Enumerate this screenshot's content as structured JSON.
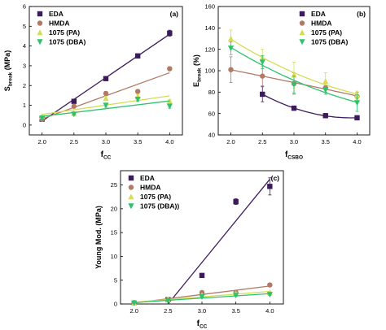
{
  "colors": {
    "EDA": "#3d1a5c",
    "HMDA": "#b07a66",
    "PA": "#d4dd55",
    "DBA": "#2ec26e"
  },
  "chart_data": [
    {
      "panel_label": "(a)",
      "type": "scatter",
      "xlabel_main": "f",
      "xlabel_sub": "CC",
      "ylabel_main": "S",
      "ylabel_sub": "break",
      "ylabel_unit": " (MPa)",
      "xlim": [
        1.8,
        4.2
      ],
      "ylim": [
        -0.5,
        6
      ],
      "xticks": [
        "2.0",
        "2.5",
        "3.0",
        "3.5",
        "4.0"
      ],
      "yticks": [
        "0",
        "1",
        "2",
        "3",
        "4",
        "5",
        "6"
      ],
      "legend_position": "top-left",
      "series": [
        {
          "name": "EDA",
          "color_key": "EDA",
          "marker": "square",
          "x": [
            2.0,
            2.5,
            3.0,
            3.5,
            4.0
          ],
          "y": [
            0.3,
            1.2,
            2.35,
            3.5,
            4.65
          ],
          "err": [
            0.05,
            0.08,
            0.08,
            0.08,
            0.15
          ],
          "fit": "linear"
        },
        {
          "name": "HMDA",
          "color_key": "HMDA",
          "marker": "circle",
          "x": [
            2.0,
            2.5,
            3.0,
            3.5,
            4.0
          ],
          "y": [
            0.3,
            0.95,
            1.6,
            1.7,
            2.85
          ],
          "err": [
            0.05,
            0.08,
            0.1,
            0.1,
            0.1
          ],
          "fit": "linear"
        },
        {
          "name": "1075 (PA)",
          "color_key": "PA",
          "marker": "triangle-up",
          "x": [
            2.0,
            2.5,
            3.0,
            3.5,
            4.0
          ],
          "y": [
            0.45,
            0.6,
            1.35,
            1.45,
            1.2
          ],
          "err": [
            0.05,
            0.05,
            0.1,
            0.1,
            0.1
          ],
          "fit": "linear"
        },
        {
          "name": "1075 (DBA)",
          "color_key": "DBA",
          "marker": "triangle-down",
          "x": [
            2.0,
            2.5,
            3.0,
            3.5,
            4.0
          ],
          "y": [
            0.35,
            0.55,
            1.0,
            1.3,
            0.95
          ],
          "err": [
            0.05,
            0.05,
            0.1,
            0.1,
            0.1
          ],
          "fit": "linear"
        }
      ]
    },
    {
      "panel_label": "(b)",
      "type": "scatter",
      "xlabel_main": "f",
      "xlabel_sub": "CSBO",
      "ylabel_main": "E",
      "ylabel_sub": "break",
      "ylabel_unit": " (%)",
      "xlim": [
        1.8,
        4.2
      ],
      "ylim": [
        40,
        160
      ],
      "xticks": [
        "2.0",
        "2.5",
        "3.0",
        "3.5",
        "4.0"
      ],
      "yticks": [
        "40",
        "60",
        "80",
        "100",
        "120",
        "140",
        "160"
      ],
      "legend_position": "top-right",
      "series": [
        {
          "name": "EDA",
          "color_key": "EDA",
          "marker": "square",
          "x": [
            2.5,
            3.0,
            3.5,
            4.0
          ],
          "y": [
            78,
            65,
            58,
            56
          ],
          "err": [
            7,
            2,
            2,
            2
          ],
          "fit": "curve"
        },
        {
          "name": "HMDA",
          "color_key": "HMDA",
          "marker": "circle",
          "x": [
            2.0,
            2.5,
            3.0,
            3.5,
            4.0
          ],
          "y": [
            101,
            95,
            88,
            84,
            76
          ],
          "err": [
            12,
            9,
            10,
            4,
            4
          ],
          "fit": "curve"
        },
        {
          "name": "1075 (PA)",
          "color_key": "PA",
          "marker": "triangle-up",
          "x": [
            2.0,
            2.5,
            3.0,
            3.5,
            4.0
          ],
          "y": [
            130,
            112,
            96,
            90,
            77
          ],
          "err": [
            8,
            8,
            12,
            8,
            4
          ],
          "fit": "curve"
        },
        {
          "name": "1075 (DBA)",
          "color_key": "DBA",
          "marker": "triangle-down",
          "x": [
            2.0,
            2.5,
            3.0,
            3.5,
            4.0
          ],
          "y": [
            121,
            108,
            87,
            82,
            70
          ],
          "err": [
            6,
            6,
            8,
            4,
            8
          ],
          "fit": "curve"
        }
      ]
    },
    {
      "panel_label": "(c)",
      "type": "scatter",
      "xlabel_main": "f",
      "xlabel_sub": "CC",
      "ylabel_main": "Young Mod. (MPa)",
      "ylabel_sub": "",
      "ylabel_unit": "",
      "xlim": [
        1.8,
        4.2
      ],
      "ylim": [
        0,
        28
      ],
      "xticks": [
        "2.0",
        "2.5",
        "3.0",
        "3.5",
        "4.0"
      ],
      "yticks": [
        "0",
        "5",
        "10",
        "15",
        "20",
        "25"
      ],
      "legend_position": "top-left",
      "series": [
        {
          "name": "EDA",
          "color_key": "EDA",
          "marker": "square",
          "x": [
            2.5,
            3.0,
            3.5,
            4.0
          ],
          "y": [
            0.9,
            6.0,
            21.5,
            24.7
          ],
          "err": [
            0.1,
            0.2,
            0.6,
            1.8
          ],
          "fit": "segment",
          "fit_points": [
            [
              2.5,
              0
            ],
            [
              4.0,
              26.2
            ]
          ]
        },
        {
          "name": "HMDA",
          "color_key": "HMDA",
          "marker": "circle",
          "x": [
            2.0,
            2.5,
            3.0,
            3.5,
            4.0
          ],
          "y": [
            0.3,
            0.9,
            2.4,
            2.4,
            4.0
          ],
          "err": [
            0.1,
            0.1,
            0.2,
            0.2,
            0.3
          ],
          "fit": "linear"
        },
        {
          "name": "1075 (PA)",
          "color_key": "PA",
          "marker": "triangle-up",
          "x": [
            2.0,
            2.5,
            3.0,
            3.5,
            4.0
          ],
          "y": [
            0.2,
            0.9,
            1.8,
            2.2,
            2.4
          ],
          "err": [
            0.1,
            0.1,
            0.1,
            0.2,
            0.2
          ],
          "fit": "linear"
        },
        {
          "name": "1075 (DBA))",
          "color_key": "DBA",
          "marker": "triangle-down",
          "x": [
            2.0,
            2.5,
            3.0,
            3.5,
            4.0
          ],
          "y": [
            0.2,
            0.7,
            1.5,
            1.8,
            2.0
          ],
          "err": [
            0.1,
            0.1,
            0.1,
            0.2,
            0.2
          ],
          "fit": "linear"
        }
      ]
    }
  ]
}
